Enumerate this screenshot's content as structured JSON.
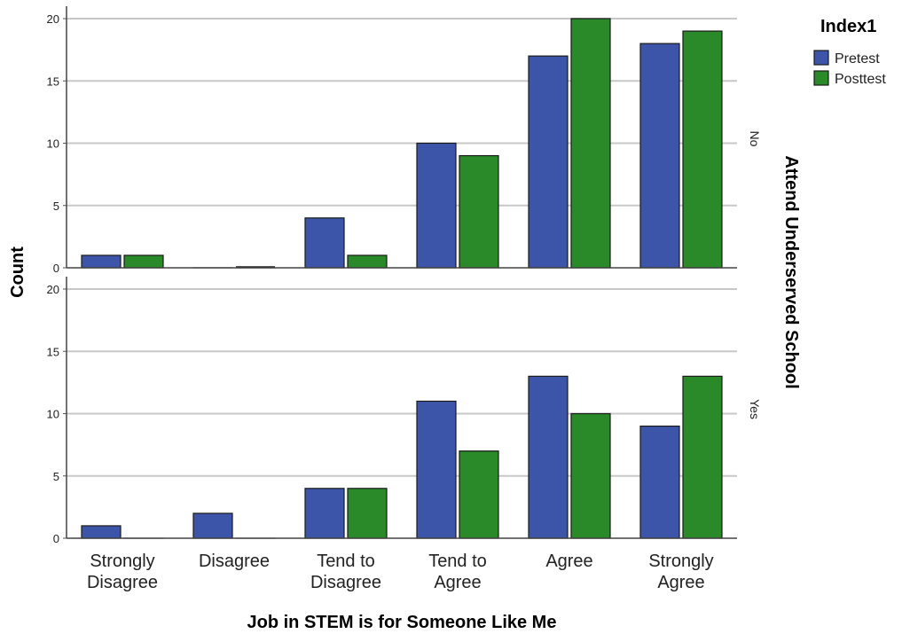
{
  "chart_data": {
    "type": "bar",
    "xlabel": "Job in STEM is for Someone Like Me",
    "ylabel": "Count",
    "panel_title": "Attend Underserved School",
    "categories": [
      [
        "Strongly",
        "Disagree"
      ],
      [
        "Disagree"
      ],
      [
        "Tend to",
        "Disagree"
      ],
      [
        "Tend to",
        "Agree"
      ],
      [
        "Agree"
      ],
      [
        "Strongly",
        "Agree"
      ]
    ],
    "yticks": [
      0,
      5,
      10,
      15,
      20
    ],
    "ylim": [
      0,
      20
    ],
    "grid": true,
    "legend": {
      "title": "Index1",
      "position": "top-right",
      "entries": [
        {
          "name": "Pretest",
          "color": "#3d55a8"
        },
        {
          "name": "Posttest",
          "color": "#2a8a2a"
        }
      ]
    },
    "panels": [
      {
        "label": "No",
        "series": [
          {
            "name": "Pretest",
            "values": [
              1,
              0,
              4,
              10,
              17,
              18
            ]
          },
          {
            "name": "Posttest",
            "values": [
              1,
              0,
              1,
              9,
              20,
              19
            ]
          }
        ]
      },
      {
        "label": "Yes",
        "series": [
          {
            "name": "Pretest",
            "values": [
              1,
              2,
              4,
              11,
              13,
              9
            ]
          },
          {
            "name": "Posttest",
            "values": [
              0,
              0,
              4,
              7,
              10,
              13
            ]
          }
        ]
      }
    ]
  }
}
